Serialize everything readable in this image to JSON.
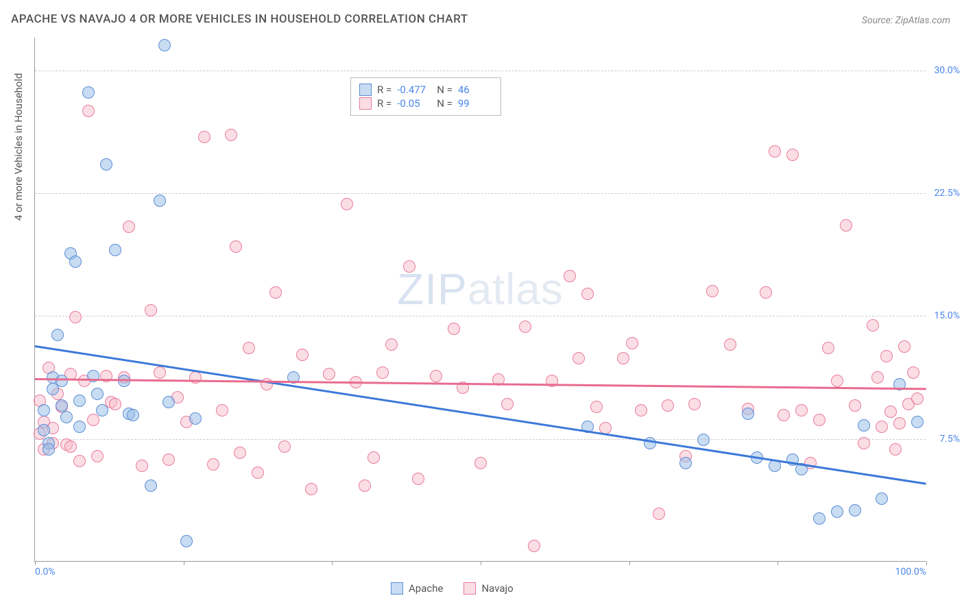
{
  "title": "APACHE VS NAVAJO 4 OR MORE VEHICLES IN HOUSEHOLD CORRELATION CHART",
  "source": "Source: ZipAtlas.com",
  "watermark_a": "ZIP",
  "watermark_b": "atlas",
  "ylabel": "4 or more Vehicles in Household",
  "chart": {
    "type": "scatter",
    "xlim": [
      0,
      100
    ],
    "ylim": [
      0,
      32
    ],
    "xtick_positions": [
      0,
      16.67,
      33.33,
      50,
      66.67,
      83.33,
      100
    ],
    "xtick_labels": {
      "0": "0.0%",
      "100": "100.0%"
    },
    "yticks": [
      7.5,
      15.0,
      22.5,
      30.0
    ],
    "ytick_labels": [
      "7.5%",
      "15.0%",
      "22.5%",
      "30.0%"
    ],
    "grid_color": "#cccccc",
    "background_color": "#ffffff",
    "axis_color": "#999999",
    "label_color": "#4a86e8",
    "point_radius": 9,
    "series": [
      {
        "name": "Apache",
        "color_fill": "rgba(155,192,232,0.55)",
        "color_stroke": "#5b8dd6",
        "r": -0.477,
        "n": 46,
        "trend": {
          "y_at_x0": 13.2,
          "y_at_x100": 4.8,
          "color": "#3b78d8"
        },
        "points": [
          [
            1,
            8
          ],
          [
            1,
            9.2
          ],
          [
            1.5,
            7.2
          ],
          [
            1.5,
            6.8
          ],
          [
            2,
            10.5
          ],
          [
            2,
            11.2
          ],
          [
            2.5,
            13.8
          ],
          [
            3,
            11
          ],
          [
            3,
            9.5
          ],
          [
            3.5,
            8.8
          ],
          [
            4,
            18.8
          ],
          [
            4.5,
            18.3
          ],
          [
            5,
            9.8
          ],
          [
            5,
            8.2
          ],
          [
            6,
            28.6
          ],
          [
            6.5,
            11.3
          ],
          [
            7,
            10.2
          ],
          [
            7.5,
            9.2
          ],
          [
            8,
            24.2
          ],
          [
            9,
            19
          ],
          [
            10,
            11
          ],
          [
            10.5,
            9
          ],
          [
            11,
            8.9
          ],
          [
            13,
            4.6
          ],
          [
            14,
            22
          ],
          [
            14.5,
            31.5
          ],
          [
            15,
            9.7
          ],
          [
            17,
            1.2
          ],
          [
            18,
            8.7
          ],
          [
            29,
            11.2
          ],
          [
            62,
            8.2
          ],
          [
            69,
            7.2
          ],
          [
            73,
            6
          ],
          [
            75,
            7.4
          ],
          [
            80,
            9
          ],
          [
            81,
            6.3
          ],
          [
            83,
            5.8
          ],
          [
            85,
            6.2
          ],
          [
            86,
            5.6
          ],
          [
            88,
            2.6
          ],
          [
            90,
            3
          ],
          [
            92,
            3.1
          ],
          [
            93,
            8.3
          ],
          [
            95,
            3.8
          ],
          [
            97,
            10.8
          ],
          [
            99,
            8.5
          ]
        ]
      },
      {
        "name": "Navajo",
        "color_fill": "rgba(248,190,204,0.5)",
        "color_stroke": "#e97a9b",
        "r": -0.05,
        "n": 99,
        "trend": {
          "y_at_x0": 11.2,
          "y_at_x100": 10.6,
          "color": "#e86b8f"
        },
        "points": [
          [
            0.5,
            7.8
          ],
          [
            0.5,
            9.8
          ],
          [
            1,
            8.5
          ],
          [
            1,
            6.8
          ],
          [
            1.5,
            11.8
          ],
          [
            2,
            7.2
          ],
          [
            2,
            8.1
          ],
          [
            2.5,
            10.2
          ],
          [
            3,
            9.4
          ],
          [
            3.5,
            7.1
          ],
          [
            4,
            7
          ],
          [
            4,
            11.4
          ],
          [
            4.5,
            14.9
          ],
          [
            5,
            6.1
          ],
          [
            5.5,
            11
          ],
          [
            6,
            27.5
          ],
          [
            6.5,
            8.6
          ],
          [
            7,
            6.4
          ],
          [
            8,
            11.3
          ],
          [
            8.5,
            9.7
          ],
          [
            9,
            9.6
          ],
          [
            10,
            11.2
          ],
          [
            10.5,
            20.4
          ],
          [
            12,
            5.8
          ],
          [
            13,
            15.3
          ],
          [
            14,
            11.5
          ],
          [
            15,
            6.2
          ],
          [
            16,
            10
          ],
          [
            17,
            8.5
          ],
          [
            18,
            11.2
          ],
          [
            19,
            25.9
          ],
          [
            20,
            5.9
          ],
          [
            21,
            9.2
          ],
          [
            22,
            26
          ],
          [
            22.5,
            19.2
          ],
          [
            23,
            6.6
          ],
          [
            24,
            13
          ],
          [
            25,
            5.4
          ],
          [
            26,
            10.8
          ],
          [
            27,
            16.4
          ],
          [
            28,
            7
          ],
          [
            30,
            12.6
          ],
          [
            31,
            4.4
          ],
          [
            33,
            11.4
          ],
          [
            35,
            21.8
          ],
          [
            36,
            10.9
          ],
          [
            37,
            4.6
          ],
          [
            38,
            6.3
          ],
          [
            39,
            11.5
          ],
          [
            40,
            13.2
          ],
          [
            42,
            18
          ],
          [
            43,
            5
          ],
          [
            45,
            11.3
          ],
          [
            47,
            14.2
          ],
          [
            48,
            10.6
          ],
          [
            50,
            6
          ],
          [
            52,
            11.1
          ],
          [
            53,
            9.6
          ],
          [
            55,
            14.3
          ],
          [
            56,
            0.9
          ],
          [
            58,
            11
          ],
          [
            60,
            17.4
          ],
          [
            61,
            12.4
          ],
          [
            62,
            16.3
          ],
          [
            63,
            9.4
          ],
          [
            64,
            8.1
          ],
          [
            66,
            12.4
          ],
          [
            67,
            13.3
          ],
          [
            68,
            9.2
          ],
          [
            70,
            2.9
          ],
          [
            71,
            9.5
          ],
          [
            73,
            6.4
          ],
          [
            74,
            9.6
          ],
          [
            76,
            16.5
          ],
          [
            78,
            13.2
          ],
          [
            80,
            9.3
          ],
          [
            82,
            16.4
          ],
          [
            83,
            25
          ],
          [
            84,
            8.9
          ],
          [
            85,
            24.8
          ],
          [
            86,
            9.2
          ],
          [
            87,
            6
          ],
          [
            88,
            8.6
          ],
          [
            89,
            13
          ],
          [
            90,
            11
          ],
          [
            91,
            20.5
          ],
          [
            92,
            9.5
          ],
          [
            93,
            7.2
          ],
          [
            94,
            14.4
          ],
          [
            94.5,
            11.2
          ],
          [
            95,
            8.2
          ],
          [
            95.5,
            12.5
          ],
          [
            96,
            9.1
          ],
          [
            96.5,
            6.8
          ],
          [
            97,
            8.4
          ],
          [
            97.5,
            13.1
          ],
          [
            98,
            9.6
          ],
          [
            98.5,
            11.5
          ],
          [
            99,
            9.9
          ]
        ]
      }
    ],
    "legend_bottom": [
      "Apache",
      "Navajo"
    ]
  }
}
